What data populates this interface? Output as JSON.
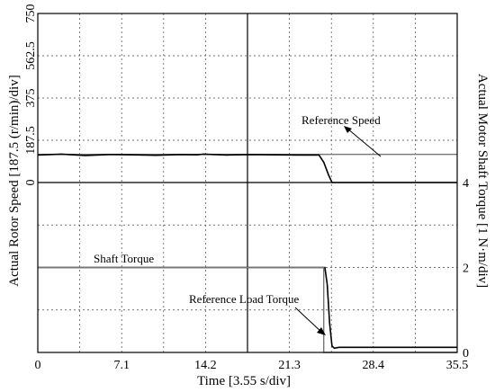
{
  "chart_data": {
    "type": "line",
    "xlabel": "Time [3.55 s/div]",
    "x_ticks": [
      "0",
      "7.1",
      "14.2",
      "21.3",
      "28.4",
      "35.5"
    ],
    "xlim": [
      0,
      35.5
    ],
    "grid": true,
    "panels": [
      {
        "name": "speed",
        "ylabel": "Actual Rotor Speed [187.5 (r/min)/div]",
        "y_ticks": [
          "0",
          "187.5",
          "375",
          "562.5",
          "750"
        ],
        "ylim": [
          0,
          750
        ],
        "series": [
          {
            "name": "Reference Speed",
            "color": "#777777",
            "x": [
              0,
              35.5
            ],
            "y": [
              125,
              125
            ]
          },
          {
            "name": "",
            "color": "#000000",
            "x": [
              0,
              2,
              4,
              6,
              8,
              10,
              12,
              13.5,
              14,
              16,
              18,
              20,
              22,
              23.8,
              24.2,
              24.6,
              24.9,
              25.2,
              35.5
            ],
            "y": [
              122,
              126,
              120,
              124,
              123,
              121,
              124,
              123,
              126,
              122,
              124,
              123,
              122,
              122,
              90,
              35,
              0,
              0,
              0
            ]
          }
        ]
      },
      {
        "name": "torque",
        "ylabel": "Actual Motor Shaft Torque [1 N·m/div]",
        "y_ticks": [
          "0",
          "2",
          "4"
        ],
        "ylim": [
          0,
          4
        ],
        "series": [
          {
            "name": "Shaft Torque",
            "color": "#000000",
            "x": [
              0,
              24.3,
              24.5,
              24.7,
              24.9,
              25.1,
              25.5,
              35.5
            ],
            "y": [
              2.0,
              2.0,
              1.6,
              0.7,
              0.15,
              0.1,
              0.12,
              0.12
            ]
          },
          {
            "name": "Reference Load Torque",
            "color": "#777777",
            "x": [
              0,
              24.2,
              24.2,
              35.5
            ],
            "y": [
              2.0,
              2.0,
              0,
              0
            ]
          }
        ]
      }
    ],
    "annotations": {
      "reference_speed": "Reference Speed",
      "shaft_torque": "Shaft Torque",
      "reference_load_torque": "Reference Load Torque"
    }
  }
}
